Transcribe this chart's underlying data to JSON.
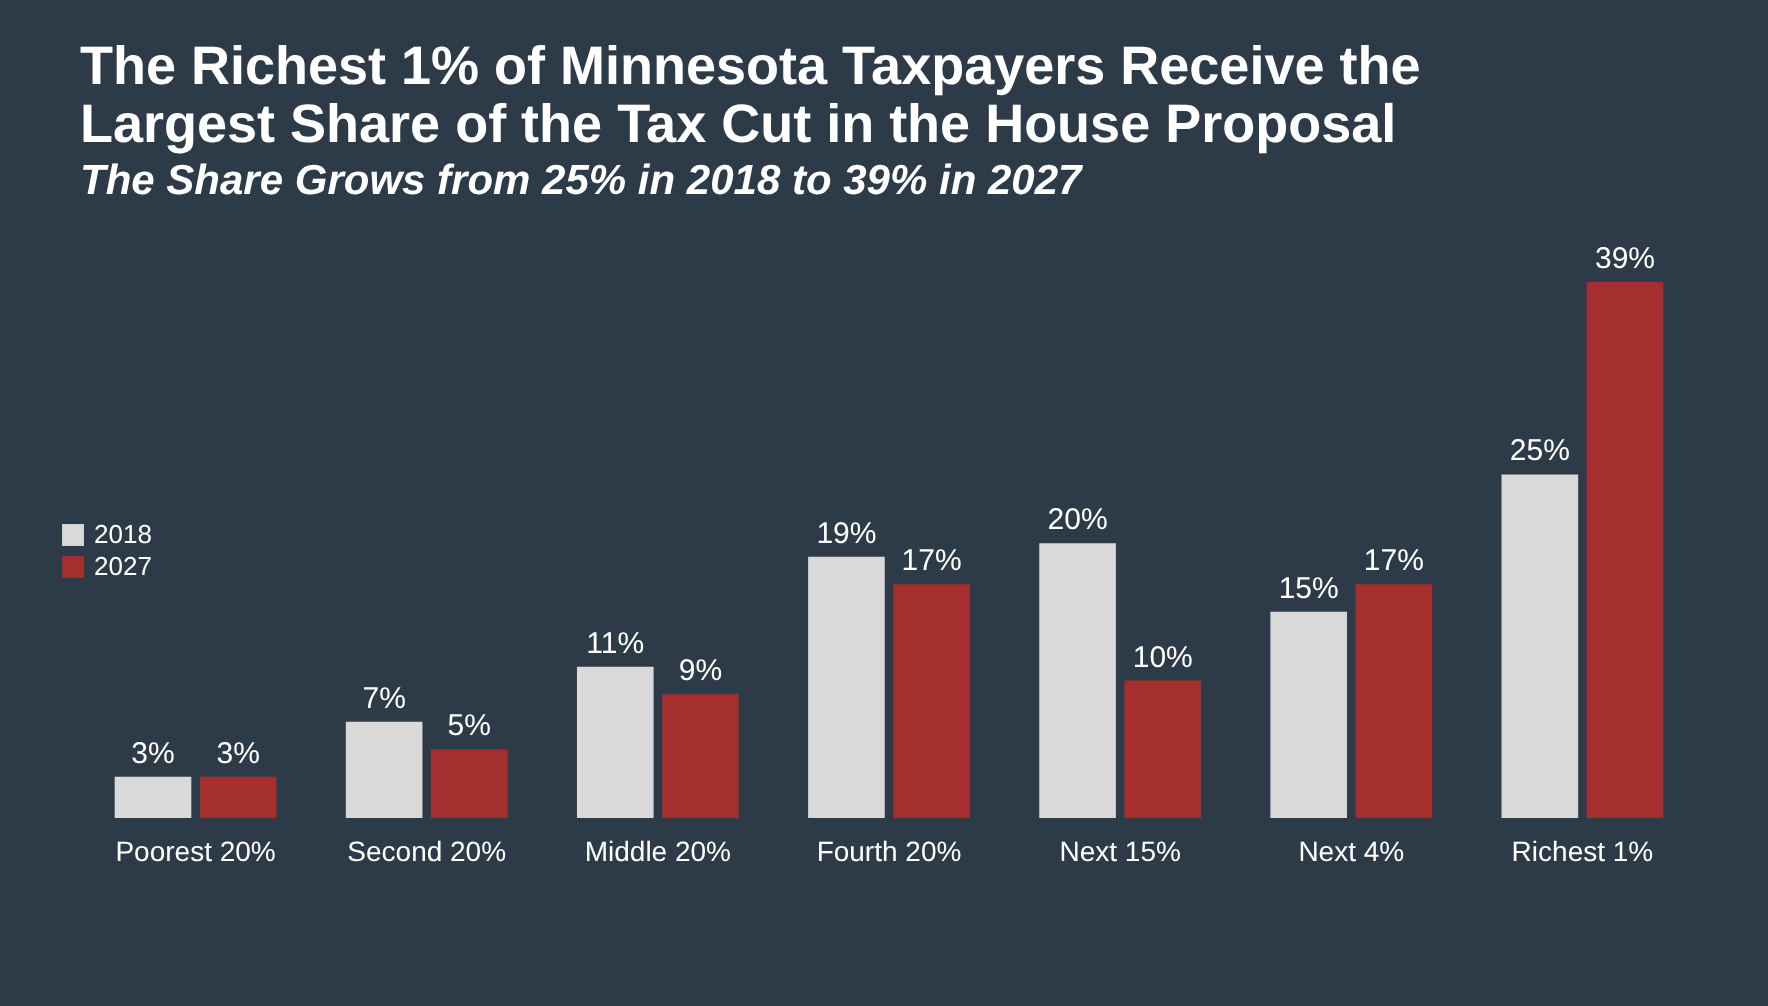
{
  "chart_data": {
    "type": "bar",
    "title": [
      "The Richest 1% of Minnesota Taxpayers Receive the",
      "Largest Share of the Tax Cut in the House Proposal"
    ],
    "subtitle": "The Share Grows from 25% in 2018 to 39% in 2027",
    "categories": [
      "Poorest 20%",
      "Second 20%",
      "Middle 20%",
      "Fourth 20%",
      "Next 15%",
      "Next 4%",
      "Richest 1%"
    ],
    "series": [
      {
        "name": "2018",
        "color": "#d9d9d9",
        "values": [
          3,
          7,
          11,
          19,
          20,
          15,
          25
        ],
        "value_labels": [
          "3%",
          "7%",
          "11%",
          "19%",
          "20%",
          "15%",
          "25%"
        ]
      },
      {
        "name": "2027",
        "color": "#a52f2f",
        "values": [
          3,
          5,
          9,
          17,
          10,
          17,
          39
        ],
        "value_labels": [
          "3%",
          "5%",
          "9%",
          "17%",
          "10%",
          "17%",
          "39%"
        ]
      }
    ],
    "legend": "left",
    "grid": false
  }
}
